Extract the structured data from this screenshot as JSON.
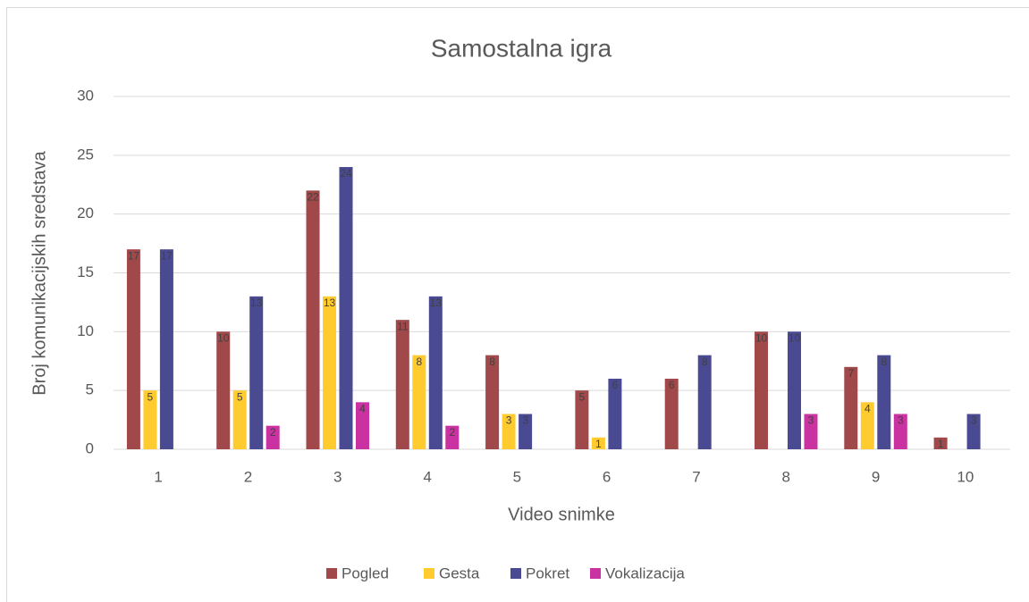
{
  "chart_data": {
    "type": "bar",
    "title": "Samostalna igra",
    "x_label": "Video snimke",
    "y_label": "Broj komunikacijskih sredstava",
    "categories": [
      "1",
      "2",
      "3",
      "4",
      "5",
      "6",
      "7",
      "8",
      "9",
      "10"
    ],
    "series": [
      {
        "name": "Pogled",
        "color": "#a0484a",
        "values": [
          17,
          10,
          22,
          11,
          8,
          5,
          6,
          10,
          7,
          1
        ]
      },
      {
        "name": "Gesta",
        "color": "#ffcb2f",
        "values": [
          5,
          5,
          13,
          8,
          3,
          1,
          0,
          0,
          4,
          0
        ]
      },
      {
        "name": "Pokret",
        "color": "#4a4a93",
        "values": [
          17,
          13,
          24,
          13,
          3,
          6,
          8,
          10,
          8,
          3
        ]
      },
      {
        "name": "Vokalizacija",
        "color": "#c932a0",
        "values": [
          0,
          2,
          4,
          2,
          0,
          0,
          0,
          3,
          3,
          0
        ]
      }
    ],
    "ylim": [
      0,
      30
    ],
    "yticks": [
      0,
      5,
      10,
      15,
      20,
      25,
      30
    ],
    "grid": true,
    "legend": "bottom"
  }
}
